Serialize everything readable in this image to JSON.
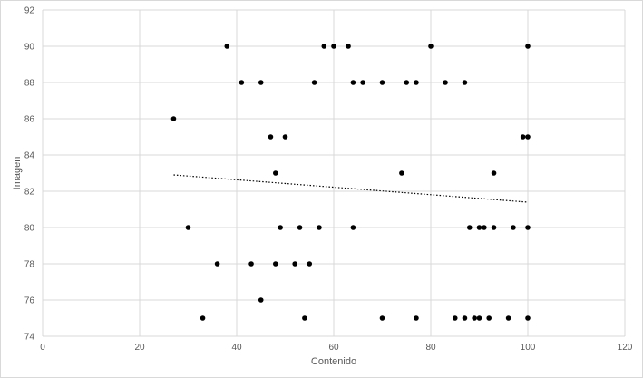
{
  "chart_data": {
    "type": "scatter",
    "title": "",
    "xlabel": "Contenido",
    "ylabel": "Imagen",
    "xlim": [
      0,
      120
    ],
    "ylim": [
      74,
      92
    ],
    "xticks": [
      0,
      20,
      40,
      60,
      80,
      100,
      120
    ],
    "yticks": [
      74,
      76,
      78,
      80,
      82,
      84,
      86,
      88,
      90,
      92
    ],
    "xtick_labels": [
      "0",
      "20",
      "40",
      "60",
      "80",
      "100",
      "120"
    ],
    "ytick_labels": [
      "74",
      "76",
      "78",
      "80",
      "82",
      "84",
      "86",
      "88",
      "90",
      "92"
    ],
    "grid": true,
    "legend": "none",
    "colors": {
      "points": "#000000",
      "grid": "#d9d9d9",
      "trendline": "#000000"
    },
    "points": [
      {
        "x": 27,
        "y": 86
      },
      {
        "x": 30,
        "y": 80
      },
      {
        "x": 33,
        "y": 75
      },
      {
        "x": 36,
        "y": 78
      },
      {
        "x": 38,
        "y": 90
      },
      {
        "x": 41,
        "y": 88
      },
      {
        "x": 43,
        "y": 78
      },
      {
        "x": 45,
        "y": 88
      },
      {
        "x": 45,
        "y": 76
      },
      {
        "x": 47,
        "y": 85
      },
      {
        "x": 48,
        "y": 83
      },
      {
        "x": 48,
        "y": 78
      },
      {
        "x": 49,
        "y": 80
      },
      {
        "x": 50,
        "y": 85
      },
      {
        "x": 52,
        "y": 78
      },
      {
        "x": 53,
        "y": 80
      },
      {
        "x": 54,
        "y": 75
      },
      {
        "x": 55,
        "y": 78
      },
      {
        "x": 56,
        "y": 88
      },
      {
        "x": 57,
        "y": 80
      },
      {
        "x": 58,
        "y": 90
      },
      {
        "x": 60,
        "y": 90
      },
      {
        "x": 63,
        "y": 90
      },
      {
        "x": 64,
        "y": 88
      },
      {
        "x": 64,
        "y": 80
      },
      {
        "x": 66,
        "y": 88
      },
      {
        "x": 70,
        "y": 88
      },
      {
        "x": 70,
        "y": 75
      },
      {
        "x": 74,
        "y": 83
      },
      {
        "x": 75,
        "y": 88
      },
      {
        "x": 77,
        "y": 88
      },
      {
        "x": 77,
        "y": 75
      },
      {
        "x": 80,
        "y": 90
      },
      {
        "x": 83,
        "y": 88
      },
      {
        "x": 85,
        "y": 75
      },
      {
        "x": 87,
        "y": 88
      },
      {
        "x": 87,
        "y": 75
      },
      {
        "x": 88,
        "y": 80
      },
      {
        "x": 89,
        "y": 75
      },
      {
        "x": 90,
        "y": 80
      },
      {
        "x": 90,
        "y": 75
      },
      {
        "x": 91,
        "y": 80
      },
      {
        "x": 92,
        "y": 75
      },
      {
        "x": 93,
        "y": 83
      },
      {
        "x": 93,
        "y": 80
      },
      {
        "x": 96,
        "y": 75
      },
      {
        "x": 97,
        "y": 80
      },
      {
        "x": 99,
        "y": 85
      },
      {
        "x": 100,
        "y": 85
      },
      {
        "x": 100,
        "y": 90
      },
      {
        "x": 100,
        "y": 80
      },
      {
        "x": 100,
        "y": 75
      }
    ],
    "trendline": {
      "style": "dotted",
      "x": [
        27,
        100
      ],
      "y": [
        82.9,
        81.4
      ]
    }
  }
}
